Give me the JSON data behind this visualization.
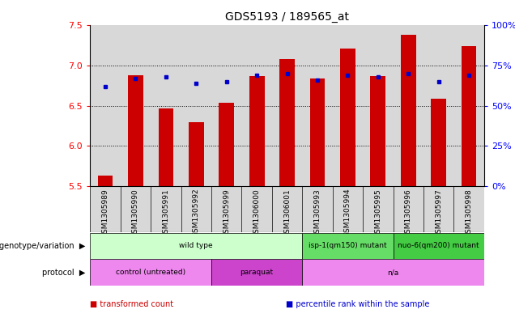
{
  "title": "GDS5193 / 189565_at",
  "samples": [
    "GSM1305989",
    "GSM1305990",
    "GSM1305991",
    "GSM1305992",
    "GSM1305999",
    "GSM1306000",
    "GSM1306001",
    "GSM1305993",
    "GSM1305994",
    "GSM1305995",
    "GSM1305996",
    "GSM1305997",
    "GSM1305998"
  ],
  "transformed_counts": [
    5.63,
    6.88,
    6.47,
    6.3,
    6.54,
    6.87,
    7.08,
    6.84,
    7.21,
    6.87,
    7.38,
    6.59,
    7.24
  ],
  "percentile_ranks": [
    62,
    67,
    68,
    64,
    65,
    69,
    70,
    66,
    69,
    68,
    70,
    65,
    69
  ],
  "y_min": 5.5,
  "y_max": 7.5,
  "y_ticks": [
    5.5,
    6.0,
    6.5,
    7.0,
    7.5
  ],
  "y2_ticks": [
    0,
    25,
    50,
    75,
    100
  ],
  "bar_color": "#cc0000",
  "dot_color": "#0000cc",
  "col_bg_color": "#d8d8d8",
  "chart_bg": "#ffffff",
  "genotype_groups": [
    {
      "label": "wild type",
      "start": 0,
      "end": 7,
      "color": "#ccffcc"
    },
    {
      "label": "isp-1(qm150) mutant",
      "start": 7,
      "end": 10,
      "color": "#66dd66"
    },
    {
      "label": "nuo-6(qm200) mutant",
      "start": 10,
      "end": 13,
      "color": "#44cc44"
    }
  ],
  "protocol_groups": [
    {
      "label": "control (untreated)",
      "start": 0,
      "end": 4,
      "color": "#ee88ee"
    },
    {
      "label": "paraquat",
      "start": 4,
      "end": 7,
      "color": "#cc44cc"
    },
    {
      "label": "n/a",
      "start": 7,
      "end": 13,
      "color": "#ee88ee"
    }
  ],
  "legend_items": [
    {
      "label": "transformed count",
      "color": "#cc0000"
    },
    {
      "label": "percentile rank within the sample",
      "color": "#0000cc"
    }
  ],
  "row_labels": [
    "genotype/variation",
    "protocol"
  ],
  "grid_lines": [
    6.0,
    6.5,
    7.0
  ],
  "bar_width": 0.5
}
